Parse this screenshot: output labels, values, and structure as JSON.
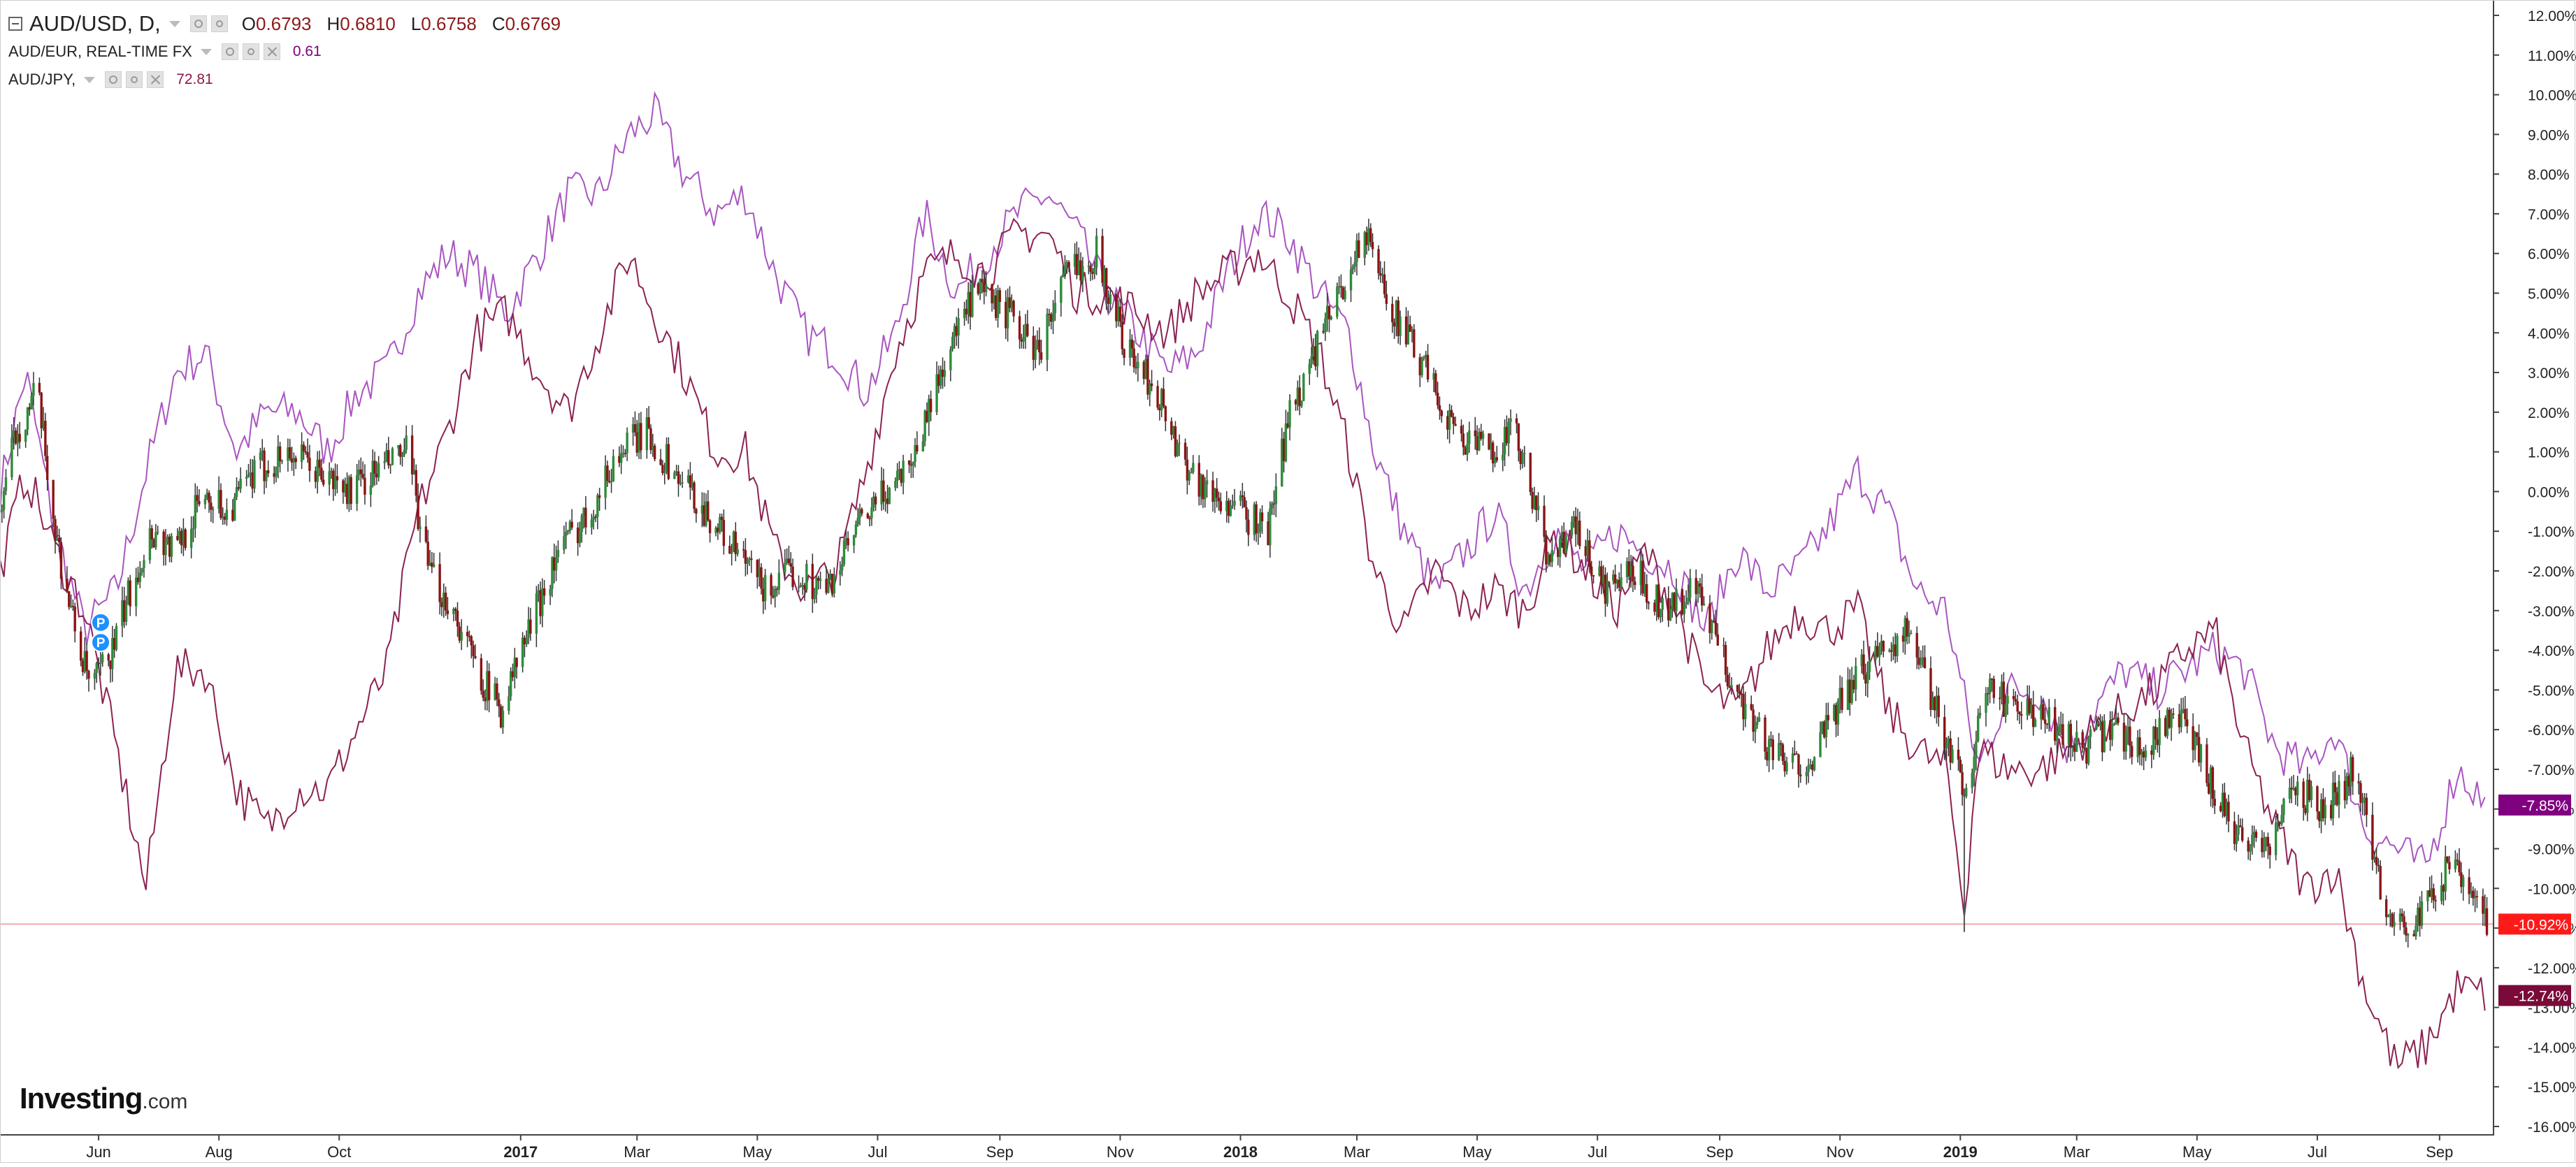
{
  "legend": {
    "main": {
      "symbol": "AUD/USD, D,",
      "open_key": "O",
      "open": "0.6793",
      "high_key": "H",
      "high": "0.6810",
      "low_key": "L",
      "low": "0.6758",
      "close_key": "C",
      "close": "0.6769"
    },
    "series2": {
      "symbol": "AUD/EUR, REAL-TIME FX",
      "value": "0.61"
    },
    "series3": {
      "symbol": "AUD/JPY,",
      "value": "72.81"
    }
  },
  "logo": {
    "word": "Investing",
    "domain": ".com"
  },
  "markers": [
    {
      "label": "P",
      "date": "2016-06-01",
      "pct": -3.3
    },
    {
      "label": "P",
      "date": "2016-06-01",
      "pct": -3.8
    }
  ],
  "colors": {
    "up": "#2e8b3a",
    "down": "#8b1414",
    "wick": "#333333",
    "eur_line": "#a855c0",
    "jpy_line": "#8b2252",
    "badge_eur": "#800080",
    "badge_usd": "#ff1a1a",
    "badge_jpy": "#7a0a3a",
    "ref_line": "#f3a9a9"
  },
  "chart_data": {
    "type": "candlestick-compare",
    "y_unit": "percent change",
    "ylim": [
      -16,
      12
    ],
    "y_ticks": [
      {
        "v": 12,
        "label": "12.00%"
      },
      {
        "v": 11,
        "label": "11.00%"
      },
      {
        "v": 10,
        "label": "10.00%"
      },
      {
        "v": 9,
        "label": "9.00%"
      },
      {
        "v": 8,
        "label": "8.00%"
      },
      {
        "v": 7,
        "label": "7.00%"
      },
      {
        "v": 6,
        "label": "6.00%"
      },
      {
        "v": 5,
        "label": "5.00%"
      },
      {
        "v": 4,
        "label": "4.00%"
      },
      {
        "v": 3,
        "label": "3.00%"
      },
      {
        "v": 2,
        "label": "2.00%"
      },
      {
        "v": 1,
        "label": "1.00%"
      },
      {
        "v": 0,
        "label": "0.00%"
      },
      {
        "v": -1,
        "label": "-1.00%"
      },
      {
        "v": -2,
        "label": "-2.00%"
      },
      {
        "v": -3,
        "label": "-3.00%"
      },
      {
        "v": -4,
        "label": "-4.00%"
      },
      {
        "v": -5,
        "label": "-5.00%"
      },
      {
        "v": -6,
        "label": "-6.00%"
      },
      {
        "v": -7,
        "label": "-7.00%"
      },
      {
        "v": -8,
        "label": "-8.00%"
      },
      {
        "v": -9,
        "label": "-9.00%"
      },
      {
        "v": -10,
        "label": "-10.00%"
      },
      {
        "v": -11,
        "label": "-11.00%"
      },
      {
        "v": -12,
        "label": "-12.00%"
      },
      {
        "v": -13,
        "label": "-13.00%"
      },
      {
        "v": -14,
        "label": "-14.00%"
      },
      {
        "v": -15,
        "label": "-15.00%"
      },
      {
        "v": -16,
        "label": "-16.00%"
      }
    ],
    "x_range": [
      "2016-04-12",
      "2019-09-28"
    ],
    "x_ticks": [
      {
        "date": "2016-06-01",
        "label": "Jun",
        "bold": false
      },
      {
        "date": "2016-08-01",
        "label": "Aug",
        "bold": false
      },
      {
        "date": "2016-10-01",
        "label": "Oct",
        "bold": false
      },
      {
        "date": "2017-01-01",
        "label": "2017",
        "bold": true
      },
      {
        "date": "2017-03-01",
        "label": "Mar",
        "bold": false
      },
      {
        "date": "2017-05-01",
        "label": "May",
        "bold": false
      },
      {
        "date": "2017-07-01",
        "label": "Jul",
        "bold": false
      },
      {
        "date": "2017-09-01",
        "label": "Sep",
        "bold": false
      },
      {
        "date": "2017-11-01",
        "label": "Nov",
        "bold": false
      },
      {
        "date": "2018-01-01",
        "label": "2018",
        "bold": true
      },
      {
        "date": "2018-03-01",
        "label": "Mar",
        "bold": false
      },
      {
        "date": "2018-05-01",
        "label": "May",
        "bold": false
      },
      {
        "date": "2018-07-01",
        "label": "Jul",
        "bold": false
      },
      {
        "date": "2018-09-01",
        "label": "Sep",
        "bold": false
      },
      {
        "date": "2018-11-01",
        "label": "Nov",
        "bold": false
      },
      {
        "date": "2019-01-01",
        "label": "2019",
        "bold": true
      },
      {
        "date": "2019-03-01",
        "label": "Mar",
        "bold": false
      },
      {
        "date": "2019-05-01",
        "label": "May",
        "bold": false
      },
      {
        "date": "2019-07-01",
        "label": "Jul",
        "bold": false
      },
      {
        "date": "2019-09-01",
        "label": "Sep",
        "bold": false
      }
    ],
    "grid": false,
    "series": [
      {
        "name": "AUD/USD",
        "kind": "candles",
        "close_label": "-10.92%",
        "dates": [
          "2016-04-12",
          "2016-04-20",
          "2016-05-01",
          "2016-05-10",
          "2016-05-20",
          "2016-05-28",
          "2016-06-08",
          "2016-06-20",
          "2016-06-28",
          "2016-07-10",
          "2016-07-25",
          "2016-08-05",
          "2016-08-20",
          "2016-09-05",
          "2016-09-20",
          "2016-10-05",
          "2016-10-20",
          "2016-11-05",
          "2016-11-15",
          "2016-11-28",
          "2016-12-10",
          "2016-12-22",
          "2017-01-05",
          "2017-01-20",
          "2017-02-05",
          "2017-02-20",
          "2017-03-05",
          "2017-03-20",
          "2017-04-05",
          "2017-04-20",
          "2017-05-05",
          "2017-05-20",
          "2017-06-05",
          "2017-06-20",
          "2017-07-05",
          "2017-07-20",
          "2017-08-05",
          "2017-08-20",
          "2017-09-05",
          "2017-09-20",
          "2017-10-05",
          "2017-10-20",
          "2017-11-05",
          "2017-11-20",
          "2017-12-01",
          "2017-12-15",
          "2018-01-01",
          "2018-01-15",
          "2018-01-26",
          "2018-02-08",
          "2018-02-20",
          "2018-03-05",
          "2018-03-20",
          "2018-04-05",
          "2018-04-20",
          "2018-05-05",
          "2018-05-20",
          "2018-06-05",
          "2018-06-20",
          "2018-07-05",
          "2018-07-20",
          "2018-08-05",
          "2018-08-20",
          "2018-09-05",
          "2018-09-20",
          "2018-10-05",
          "2018-10-20",
          "2018-11-05",
          "2018-11-20",
          "2018-12-05",
          "2018-12-20",
          "2019-01-03",
          "2019-01-15",
          "2019-02-01",
          "2019-02-20",
          "2019-03-05",
          "2019-03-20",
          "2019-04-05",
          "2019-04-20",
          "2019-05-05",
          "2019-05-20",
          "2019-06-05",
          "2019-06-20",
          "2019-07-05",
          "2019-07-20",
          "2019-08-05",
          "2019-08-20",
          "2019-09-05",
          "2019-09-15",
          "2019-09-25"
        ],
        "values": [
          -0.5,
          1.5,
          2.5,
          -1.0,
          -3.5,
          -5.0,
          -4.0,
          -2.0,
          -1.0,
          -1.5,
          0.0,
          -0.5,
          0.5,
          1.0,
          0.5,
          0.0,
          0.5,
          1.0,
          -2.0,
          -3.0,
          -4.5,
          -5.5,
          -3.5,
          -1.5,
          -0.5,
          1.0,
          1.5,
          0.5,
          -0.5,
          -1.5,
          -2.5,
          -2.0,
          -2.5,
          -1.0,
          0.0,
          1.0,
          3.5,
          5.0,
          4.5,
          3.5,
          5.5,
          6.0,
          3.5,
          2.5,
          1.0,
          0.0,
          -0.5,
          -1.0,
          2.0,
          3.5,
          5.0,
          6.5,
          4.5,
          3.0,
          1.5,
          1.0,
          1.5,
          -1.5,
          -1.0,
          -2.5,
          -2.0,
          -3.0,
          -2.5,
          -4.5,
          -6.0,
          -7.0,
          -6.5,
          -5.0,
          -4.0,
          -3.5,
          -5.5,
          -7.5,
          -5.0,
          -5.5,
          -6.0,
          -6.5,
          -6.0,
          -6.5,
          -5.5,
          -7.0,
          -8.5,
          -9.0,
          -7.5,
          -8.0,
          -7.0,
          -10.5,
          -11.0,
          -9.5,
          -10.0,
          -10.9
        ]
      },
      {
        "name": "AUD/EUR",
        "kind": "line",
        "close_label": "-7.85%",
        "dates": [
          "2016-04-12",
          "2016-04-25",
          "2016-05-10",
          "2016-05-25",
          "2016-06-10",
          "2016-06-25",
          "2016-07-10",
          "2016-07-25",
          "2016-08-10",
          "2016-08-25",
          "2016-09-10",
          "2016-09-25",
          "2016-10-10",
          "2016-10-25",
          "2016-11-10",
          "2016-11-25",
          "2016-12-10",
          "2016-12-25",
          "2017-01-10",
          "2017-01-25",
          "2017-02-10",
          "2017-02-25",
          "2017-03-10",
          "2017-03-25",
          "2017-04-10",
          "2017-04-25",
          "2017-05-10",
          "2017-05-25",
          "2017-06-10",
          "2017-06-25",
          "2017-07-10",
          "2017-07-25",
          "2017-08-10",
          "2017-08-25",
          "2017-09-10",
          "2017-09-25",
          "2017-10-10",
          "2017-10-25",
          "2017-11-10",
          "2017-11-25",
          "2017-12-10",
          "2017-12-25",
          "2018-01-10",
          "2018-01-25",
          "2018-02-10",
          "2018-02-25",
          "2018-03-10",
          "2018-03-25",
          "2018-04-10",
          "2018-04-25",
          "2018-05-10",
          "2018-05-25",
          "2018-06-10",
          "2018-06-25",
          "2018-07-10",
          "2018-07-25",
          "2018-08-10",
          "2018-08-25",
          "2018-09-10",
          "2018-09-25",
          "2018-10-10",
          "2018-10-25",
          "2018-11-10",
          "2018-11-25",
          "2018-12-10",
          "2018-12-25",
          "2019-01-10",
          "2019-01-25",
          "2019-02-10",
          "2019-02-25",
          "2019-03-10",
          "2019-03-25",
          "2019-04-10",
          "2019-04-25",
          "2019-05-10",
          "2019-05-25",
          "2019-06-10",
          "2019-06-25",
          "2019-07-10",
          "2019-07-25",
          "2019-08-10",
          "2019-08-25",
          "2019-09-10",
          "2019-09-25"
        ],
        "values": [
          0.0,
          3.0,
          -1.0,
          -3.5,
          -2.5,
          0.5,
          3.0,
          3.5,
          1.0,
          2.0,
          2.0,
          1.0,
          2.5,
          3.0,
          5.0,
          6.0,
          5.5,
          4.5,
          6.0,
          7.5,
          7.5,
          9.0,
          9.5,
          8.0,
          7.0,
          7.5,
          5.5,
          4.0,
          3.5,
          2.5,
          4.0,
          7.0,
          5.0,
          6.0,
          7.0,
          7.5,
          6.5,
          5.0,
          4.0,
          3.0,
          3.5,
          5.5,
          7.0,
          6.5,
          5.0,
          4.0,
          1.0,
          -1.0,
          -2.5,
          -1.5,
          -0.5,
          -2.5,
          -1.0,
          -2.0,
          -1.0,
          -1.5,
          -2.0,
          -3.5,
          -1.5,
          -2.5,
          -2.0,
          -1.0,
          0.5,
          -0.5,
          -2.5,
          -3.0,
          -7.0,
          -5.0,
          -5.0,
          -6.5,
          -5.5,
          -4.5,
          -5.0,
          -4.5,
          -4.0,
          -4.5,
          -6.5,
          -7.0,
          -6.0,
          -8.5,
          -9.0,
          -9.5,
          -7.0,
          -7.9
        ]
      },
      {
        "name": "AUD/JPY",
        "kind": "line",
        "close_label": "-12.74%",
        "dates": [
          "2016-04-12",
          "2016-04-25",
          "2016-05-10",
          "2016-05-25",
          "2016-06-10",
          "2016-06-25",
          "2016-07-10",
          "2016-07-25",
          "2016-08-10",
          "2016-08-25",
          "2016-09-10",
          "2016-09-25",
          "2016-10-10",
          "2016-10-25",
          "2016-11-10",
          "2016-11-25",
          "2016-12-10",
          "2016-12-25",
          "2017-01-10",
          "2017-01-25",
          "2017-02-10",
          "2017-02-25",
          "2017-03-10",
          "2017-03-25",
          "2017-04-10",
          "2017-04-25",
          "2017-05-10",
          "2017-05-25",
          "2017-06-10",
          "2017-06-25",
          "2017-07-10",
          "2017-07-25",
          "2017-08-10",
          "2017-08-25",
          "2017-09-10",
          "2017-09-25",
          "2017-10-10",
          "2017-10-25",
          "2017-11-10",
          "2017-11-25",
          "2017-12-10",
          "2017-12-25",
          "2018-01-10",
          "2018-01-25",
          "2018-02-10",
          "2018-02-25",
          "2018-03-10",
          "2018-03-25",
          "2018-04-10",
          "2018-04-25",
          "2018-05-10",
          "2018-05-25",
          "2018-06-10",
          "2018-06-25",
          "2018-07-10",
          "2018-07-25",
          "2018-08-10",
          "2018-08-25",
          "2018-09-10",
          "2018-09-25",
          "2018-10-10",
          "2018-10-25",
          "2018-11-10",
          "2018-11-25",
          "2018-12-10",
          "2018-12-25",
          "2019-01-03",
          "2019-01-10",
          "2019-01-25",
          "2019-02-10",
          "2019-02-25",
          "2019-03-10",
          "2019-03-25",
          "2019-04-10",
          "2019-04-25",
          "2019-05-10",
          "2019-05-25",
          "2019-06-10",
          "2019-06-25",
          "2019-07-10",
          "2019-07-25",
          "2019-08-10",
          "2019-08-25",
          "2019-09-10",
          "2019-09-25"
        ],
        "values": [
          -2.0,
          0.5,
          -1.5,
          -3.0,
          -6.5,
          -10.0,
          -4.5,
          -4.5,
          -7.5,
          -8.5,
          -7.5,
          -7.5,
          -6.0,
          -4.5,
          -0.5,
          1.5,
          4.0,
          4.5,
          3.0,
          2.0,
          4.0,
          6.0,
          4.5,
          3.0,
          1.0,
          1.0,
          -1.5,
          -2.5,
          -2.0,
          0.5,
          3.5,
          5.5,
          6.0,
          5.5,
          6.5,
          6.5,
          5.0,
          5.0,
          4.5,
          4.0,
          5.0,
          5.5,
          6.0,
          5.0,
          3.5,
          1.0,
          -2.0,
          -3.5,
          -2.0,
          -3.0,
          -2.5,
          -3.0,
          -1.0,
          -2.0,
          -3.0,
          -1.5,
          -3.0,
          -5.0,
          -5.5,
          -4.0,
          -3.0,
          -3.5,
          -3.0,
          -5.5,
          -6.5,
          -7.0,
          -10.5,
          -6.5,
          -7.0,
          -7.0,
          -6.5,
          -6.0,
          -5.5,
          -5.0,
          -4.0,
          -3.5,
          -6.5,
          -8.5,
          -10.0,
          -9.5,
          -12.5,
          -14.5,
          -14.0,
          -12.5,
          -12.7
        ]
      }
    ]
  }
}
